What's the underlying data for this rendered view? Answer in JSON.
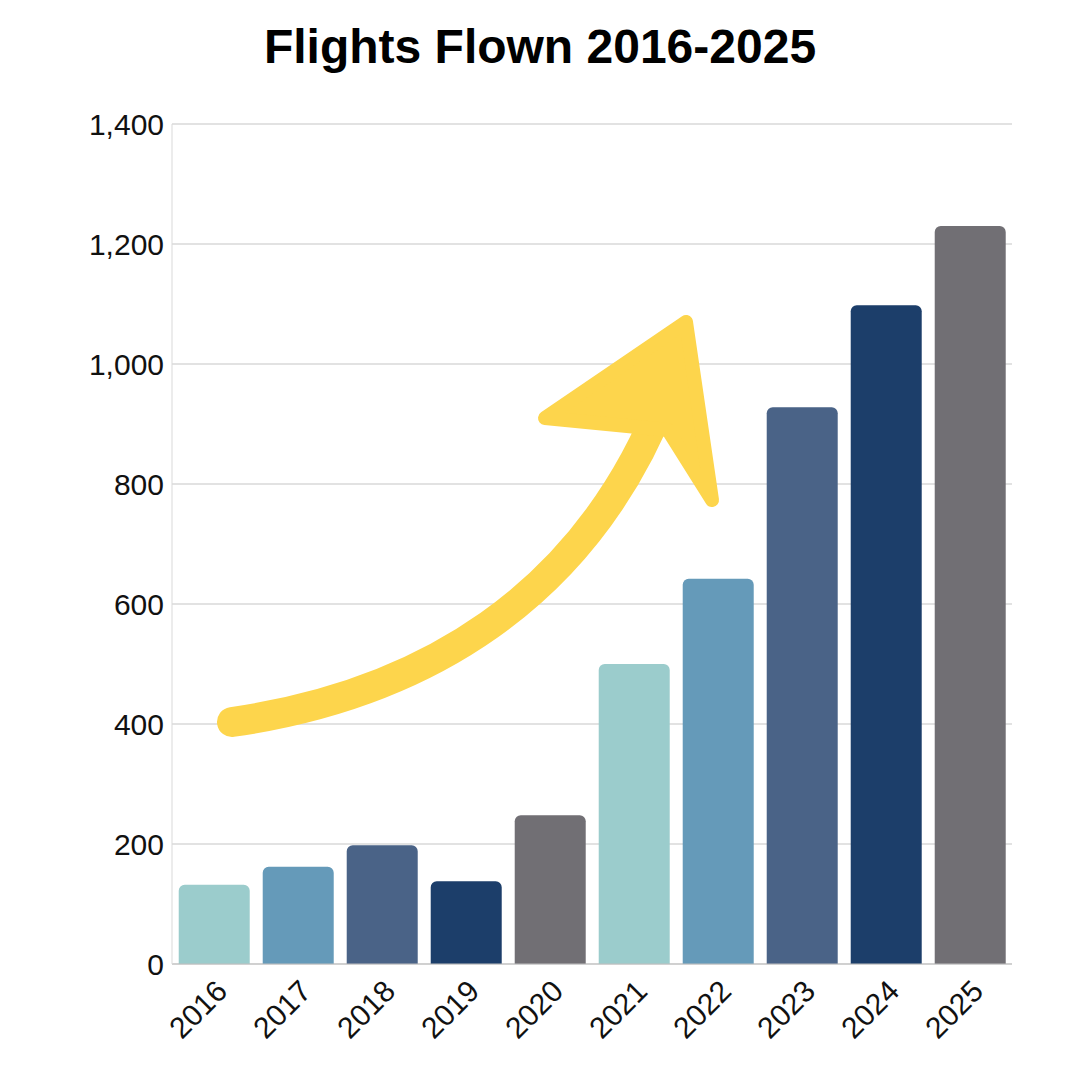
{
  "chart_data": {
    "type": "bar",
    "title": "Flights Flown 2016-2025",
    "categories": [
      "2016",
      "2017",
      "2018",
      "2019",
      "2020",
      "2021",
      "2022",
      "2023",
      "2024",
      "2025"
    ],
    "values": [
      132,
      162,
      198,
      138,
      248,
      500,
      642,
      928,
      1098,
      1230
    ],
    "colors": [
      "#9bcccc",
      "#659ab9",
      "#4a6387",
      "#1c3e6a",
      "#716f74",
      "#9bcccc",
      "#659ab9",
      "#4a6387",
      "#1c3e6a",
      "#716f74"
    ],
    "ylim": [
      0,
      1400
    ],
    "yticks": [
      0,
      200,
      400,
      600,
      800,
      {
        "value": 1000,
        "label": "1,000"
      },
      {
        "value": 1200,
        "label": "1,200"
      },
      {
        "value": 1400,
        "label": "1,400"
      }
    ],
    "grid": true
  }
}
